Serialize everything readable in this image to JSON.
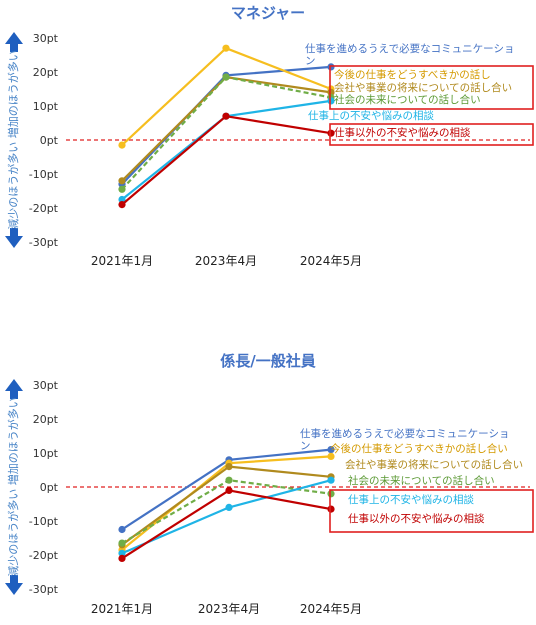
{
  "chart_data": [
    {
      "type": "line",
      "title": "マネジャー",
      "ylabel": "減少のほうが多い 増加のほうが多い",
      "categories": [
        "2021年1月",
        "2023年4月",
        "2024年5月"
      ],
      "ylim": [
        -30,
        30
      ],
      "yticks": [
        "30pt",
        "20pt",
        "10pt",
        "0pt",
        "-10pt",
        "-20pt",
        "-30pt"
      ],
      "series": [
        {
          "name": "仕事を進めるうえで必要なコミュニケーション",
          "values": [
            -13,
            19,
            21.5
          ],
          "color": "#4472c4",
          "dash": false,
          "highlight": false
        },
        {
          "name": "今後の仕事をどうすべきかの話し",
          "values": [
            -1.5,
            27,
            15
          ],
          "color": "#f6be1f",
          "dash": false,
          "highlight": true
        },
        {
          "name": "会社や事業の将来についての話し合い",
          "values": [
            -12,
            18.5,
            14
          ],
          "color": "#b08a1e",
          "dash": false,
          "highlight": true
        },
        {
          "name": "社会の未来についての話し合い",
          "values": [
            -14.5,
            18.5,
            12.5
          ],
          "color": "#70ad47",
          "dash": true,
          "highlight": true
        },
        {
          "name": "仕事上の不安や悩みの相談",
          "values": [
            -17.5,
            7,
            11.5
          ],
          "color": "#1fb4e6",
          "dash": false,
          "highlight": false
        },
        {
          "name": "仕事以外の不安や悩みの相談",
          "values": [
            -19,
            7,
            2
          ],
          "color": "#c00000",
          "dash": false,
          "highlight": true
        }
      ]
    },
    {
      "type": "line",
      "title": "係長/一般社員",
      "ylabel": "減少のほうが多い 増加のほうが多い",
      "categories": [
        "2021年1月",
        "2023年4月",
        "2024年5月"
      ],
      "ylim": [
        -30,
        30
      ],
      "yticks": [
        "30pt",
        "20pt",
        "10pt",
        "0pt",
        "-10pt",
        "-20pt",
        "-30pt"
      ],
      "series": [
        {
          "name": "仕事を進めるうえで必要なコミュニケーション",
          "values": [
            -12.5,
            8,
            11
          ],
          "color": "#4472c4",
          "dash": false,
          "highlight": false
        },
        {
          "name": "今後の仕事をどうすべきかの話し合い",
          "values": [
            -18.5,
            7,
            9
          ],
          "color": "#f6be1f",
          "dash": false,
          "highlight": false
        },
        {
          "name": "会社や事業の将来についての話し合い",
          "values": [
            -17,
            6,
            3
          ],
          "color": "#b08a1e",
          "dash": false,
          "highlight": false
        },
        {
          "name": "社会の未来についての話し合い",
          "values": [
            -16.5,
            2,
            -2
          ],
          "color": "#70ad47",
          "dash": true,
          "highlight": true
        },
        {
          "name": "仕事上の不安や悩みの相談",
          "values": [
            -19.5,
            -6,
            2
          ],
          "color": "#1fb4e6",
          "dash": false,
          "highlight": false
        },
        {
          "name": "仕事以外の不安や悩みの相談",
          "values": [
            -21,
            -1,
            -6.5
          ],
          "color": "#c00000",
          "dash": false,
          "highlight": true
        }
      ]
    }
  ]
}
